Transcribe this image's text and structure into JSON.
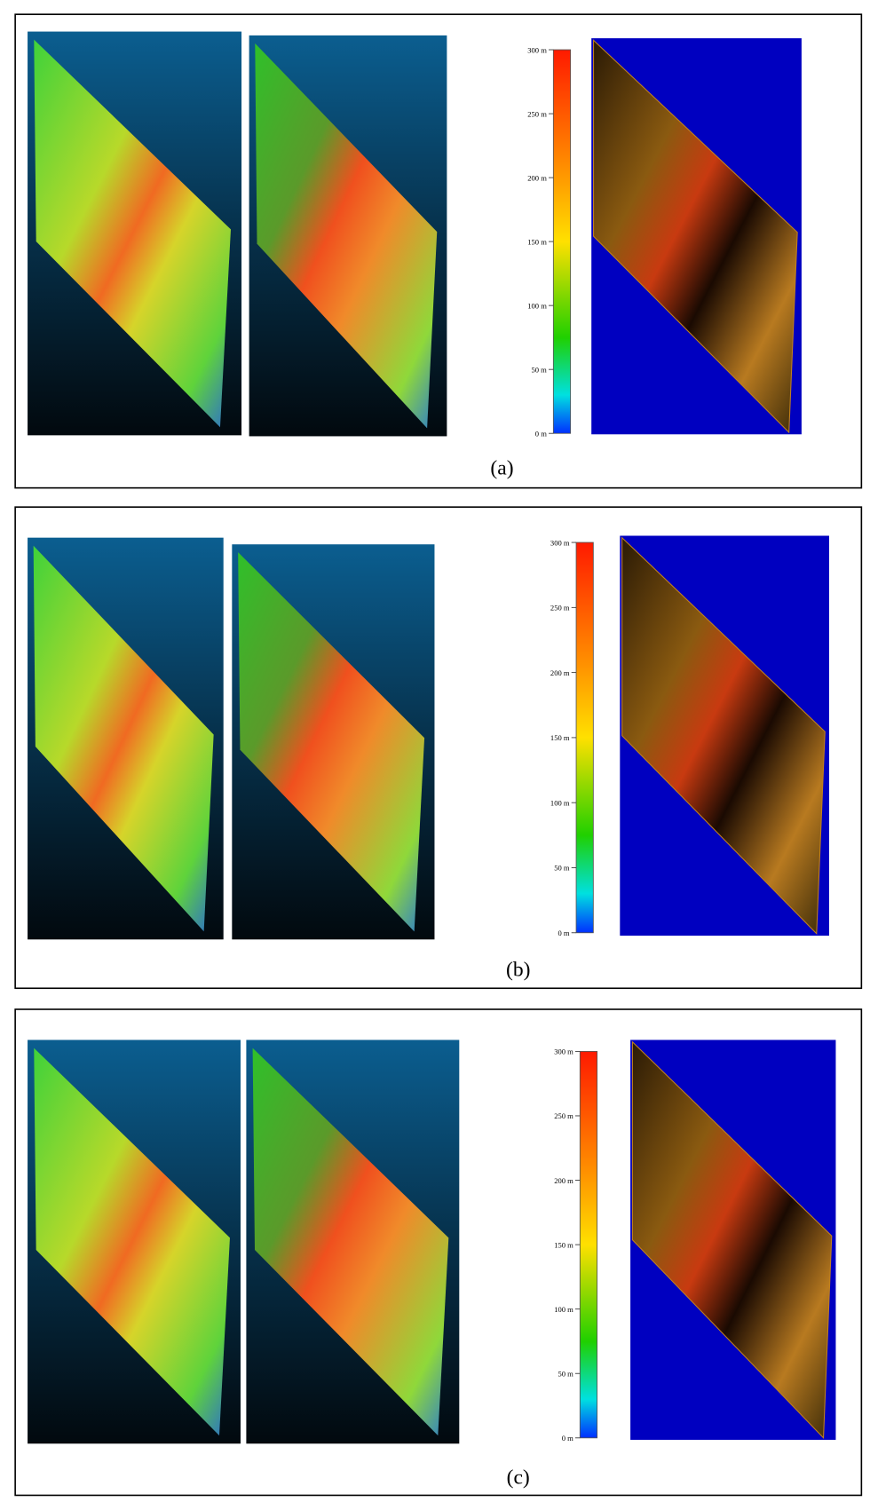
{
  "panels": [
    {
      "caption": "(a)",
      "colorbar": {
        "ticks": [
          {
            "value": 0,
            "label": "0 m"
          },
          {
            "value": 50,
            "label": "50 m"
          },
          {
            "value": 100,
            "label": "100 m"
          },
          {
            "value": 150,
            "label": "150 m"
          },
          {
            "value": 200,
            "label": "200 m"
          },
          {
            "value": 250,
            "label": "250 m"
          },
          {
            "value": 300,
            "label": "300 m"
          }
        ]
      }
    },
    {
      "caption": "(b)",
      "colorbar": {
        "ticks": [
          {
            "value": 0,
            "label": "0 m"
          },
          {
            "value": 50,
            "label": "50 m"
          },
          {
            "value": 100,
            "label": "100 m"
          },
          {
            "value": 150,
            "label": "150 m"
          },
          {
            "value": 200,
            "label": "200 m"
          },
          {
            "value": 250,
            "label": "250 m"
          },
          {
            "value": 300,
            "label": "300 m"
          }
        ]
      }
    },
    {
      "caption": "(c)",
      "colorbar": {
        "ticks": [
          {
            "value": 0,
            "label": "0 m"
          },
          {
            "value": 50,
            "label": "50 m"
          },
          {
            "value": 100,
            "label": "100 m"
          },
          {
            "value": 150,
            "label": "150 m"
          },
          {
            "value": 200,
            "label": "200 m"
          },
          {
            "value": 250,
            "label": "250 m"
          },
          {
            "value": 300,
            "label": "300 m"
          }
        ]
      }
    }
  ]
}
